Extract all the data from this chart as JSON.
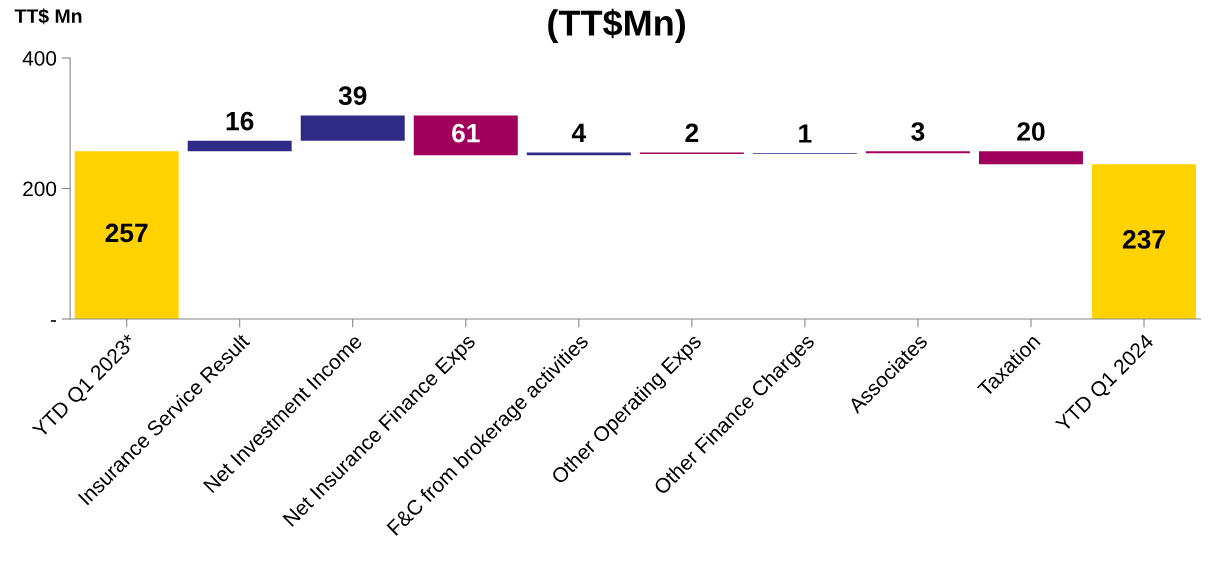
{
  "chart_data": {
    "type": "bar",
    "title": "(TT$Mn)",
    "ylabel": "TT$ Mn",
    "categories": [
      "YTD Q1 2023*",
      "Insurance Service Result",
      "Net Investment Income",
      "Net Insurance Finance Exps",
      "F&C from brokerage activities",
      "Other Operating Exps",
      "Other Finance Charges",
      "Associates",
      "Taxation",
      "YTD Q1 2024"
    ],
    "values": [
      257,
      16,
      39,
      -61,
      4,
      -2,
      1,
      -3,
      -20,
      237
    ],
    "base": [
      0,
      257,
      273,
      312,
      251,
      255,
      253,
      257,
      257,
      0
    ],
    "colors": [
      "#ffd200",
      "#2e2a86",
      "#2e2a86",
      "#a0005a",
      "#2e2a86",
      "#a0005a",
      "#2e2a86",
      "#a0005a",
      "#a0005a",
      "#ffd200"
    ],
    "value_labels": [
      "257",
      "16",
      "39",
      "61",
      "4",
      "2",
      "1",
      "3",
      "20",
      "237"
    ],
    "ylim": [
      0,
      400
    ],
    "yticks": [
      {
        "value": 0,
        "label": "-"
      },
      200,
      400
    ],
    "grid": false,
    "legend": false
  }
}
